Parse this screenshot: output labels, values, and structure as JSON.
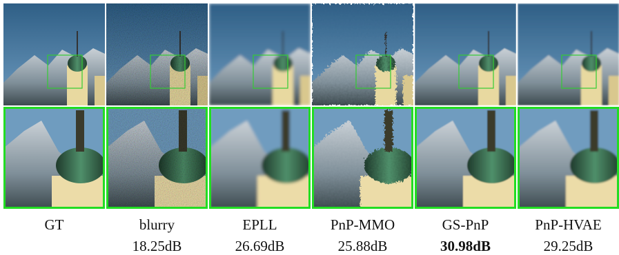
{
  "panels": [
    {
      "method": "GT"
    },
    {
      "method": "blurry",
      "psnr": "18.25dB"
    },
    {
      "method": "EPLL",
      "psnr": "26.69dB"
    },
    {
      "method": "PnP-MMO",
      "psnr": "25.88dB"
    },
    {
      "method": "GS-PnP",
      "psnr": "30.98dB"
    },
    {
      "method": "PnP-HVAE",
      "psnr": "29.25dB"
    }
  ]
}
